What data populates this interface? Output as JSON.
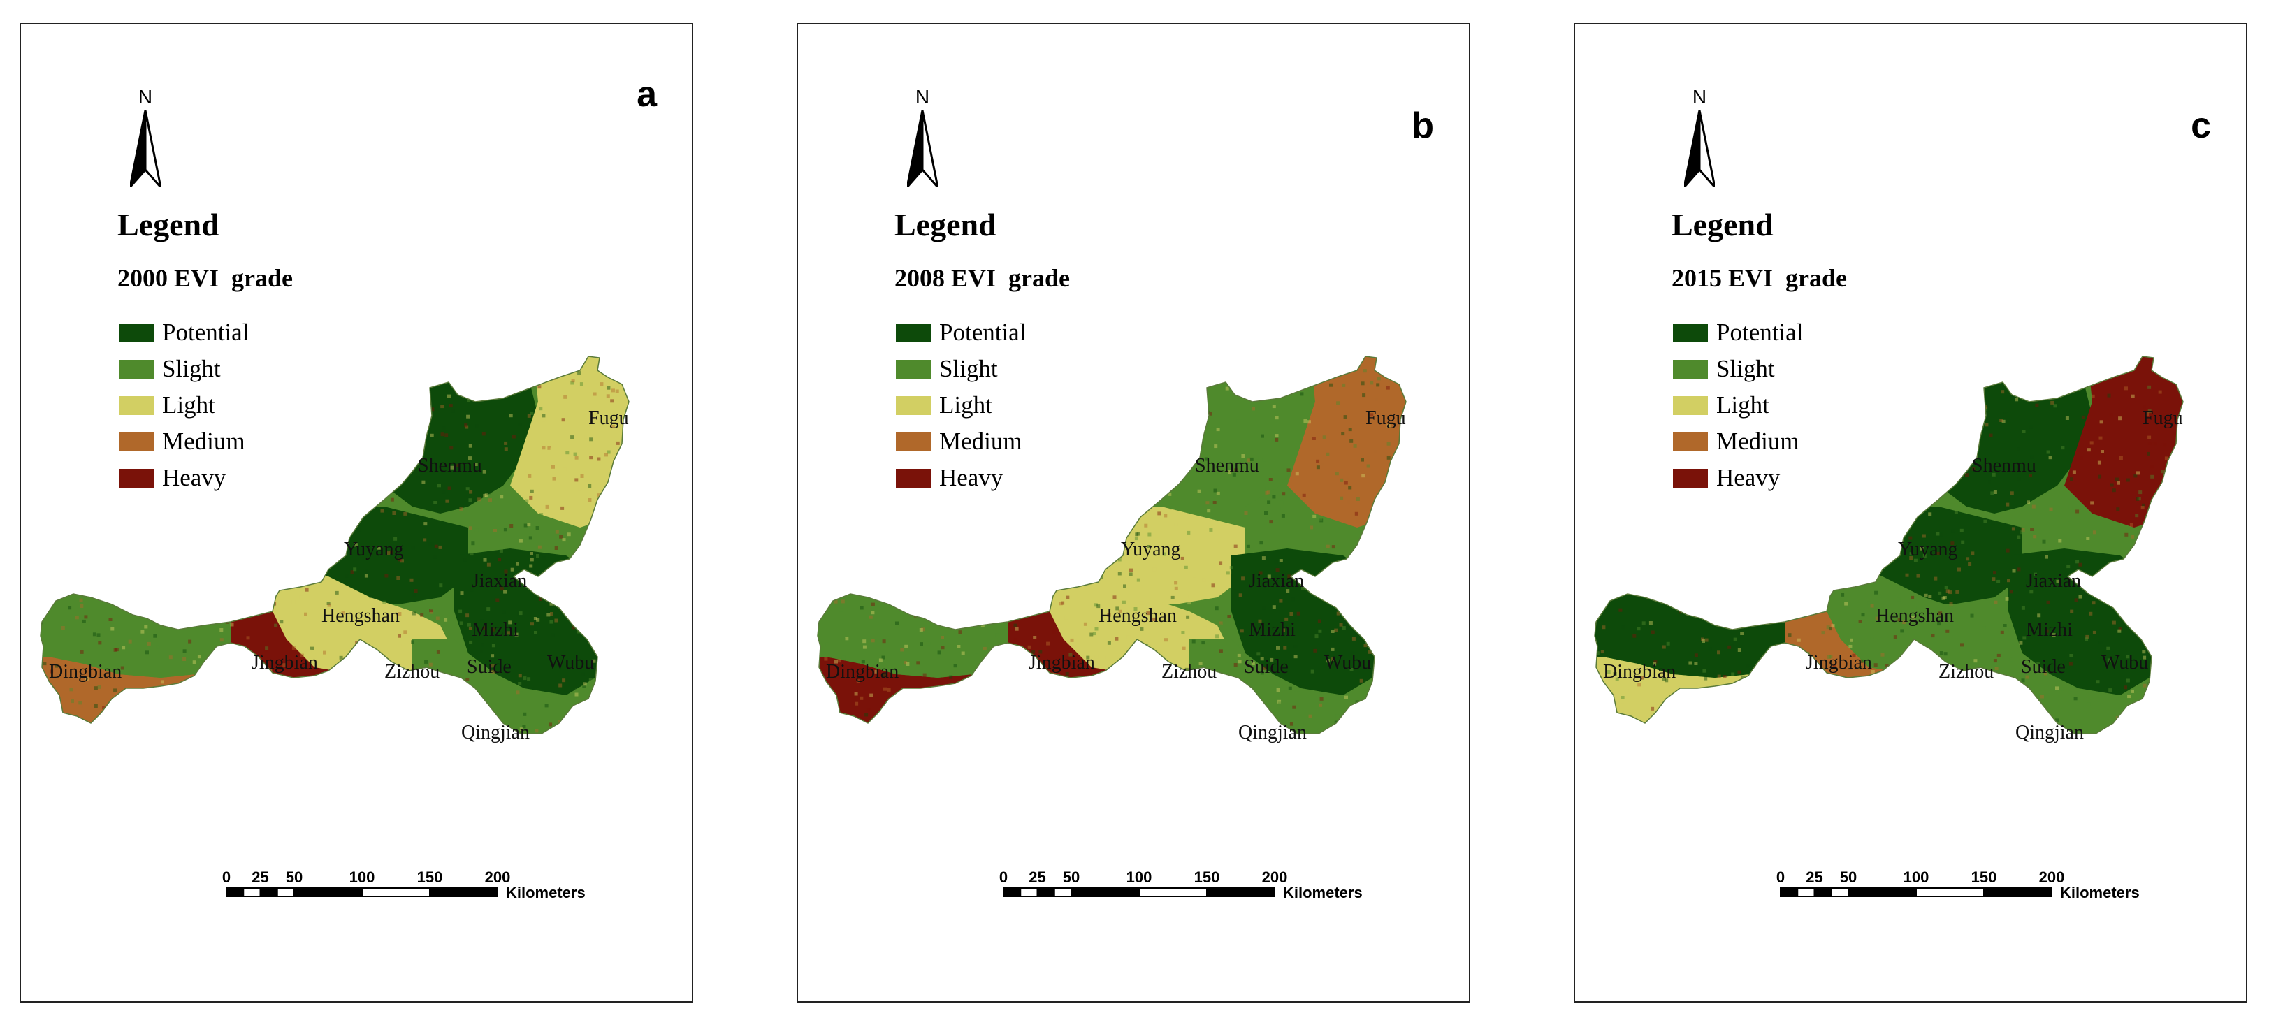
{
  "legend_items": [
    {
      "label": "Potential",
      "color": "#0d4a0a"
    },
    {
      "label": "Slight",
      "color": "#4f8a2c"
    },
    {
      "label": "Light",
      "color": "#d2cf63"
    },
    {
      "label": "Medium",
      "color": "#b0682a"
    },
    {
      "label": "Heavy",
      "color": "#7a1209"
    }
  ],
  "panels": [
    {
      "letter": "a",
      "year": "2000",
      "subtitle_suffix": " EVI  grade",
      "legend_title": "Legend",
      "north": "N",
      "regions": {
        "dingbian": "Slight",
        "jingbian": "Heavy",
        "west_south": "Medium",
        "shenmu": "Potential",
        "yuyang": "Potential",
        "fugu": "Light",
        "hengshan": "Light",
        "mizhi": "Potential",
        "qingjian": "Slight",
        "zizhou": "Slight"
      }
    },
    {
      "letter": "b",
      "year": "2008",
      "subtitle_suffix": " EVI  grade",
      "legend_title": "Legend",
      "north": "N",
      "regions": {
        "dingbian": "Slight",
        "jingbian": "Heavy",
        "west_south": "Heavy",
        "shenmu": "Slight",
        "yuyang": "Light",
        "fugu": "Medium",
        "hengshan": "Light",
        "mizhi": "Potential",
        "qingjian": "Slight",
        "zizhou": "Slight"
      }
    },
    {
      "letter": "c",
      "year": "2015",
      "subtitle_suffix": " EVI  grade",
      "legend_title": "Legend",
      "north": "N",
      "regions": {
        "dingbian": "Potential",
        "jingbian": "Medium",
        "west_south": "Light",
        "shenmu": "Potential",
        "yuyang": "Potential",
        "fugu": "Heavy",
        "hengshan": "Slight",
        "mizhi": "Potential",
        "qingjian": "Slight",
        "zizhou": "Slight"
      }
    }
  ],
  "place_names": [
    "Fugu",
    "Shenmu",
    "Yuyang",
    "Jiaxian",
    "Hengshan",
    "Mizhi",
    "Dingbian",
    "Jingbian",
    "Zizhou",
    "Suide",
    "Wubu",
    "Qingjian"
  ],
  "scale": {
    "ticks": [
      "0",
      "25",
      "50",
      "100",
      "150",
      "200"
    ],
    "unit": "Kilometers"
  }
}
